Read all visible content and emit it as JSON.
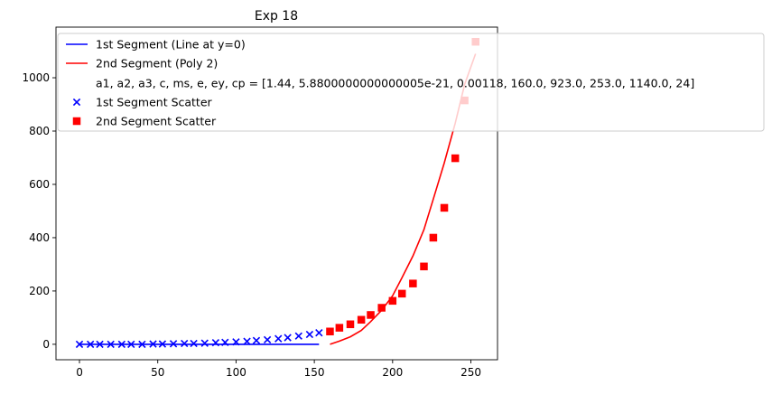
{
  "chart_data": {
    "type": "scatter",
    "title": "Exp 18",
    "xlabel": "",
    "ylabel": "",
    "xlim": [
      -15,
      267
    ],
    "ylim": [
      -58,
      1190
    ],
    "xticks": [
      0,
      50,
      100,
      150,
      200,
      250
    ],
    "yticks": [
      0,
      200,
      400,
      600,
      800,
      1000
    ],
    "grid": false,
    "legend_position": "upper-left",
    "legend": {
      "entries": [
        {
          "label": "1st Segment (Line at y=0)",
          "kind": "line",
          "color": "#0000ff"
        },
        {
          "label": "2nd Segment (Poly 2)",
          "kind": "line",
          "color": "#ff0000"
        },
        {
          "label": "a1, a2, a3, c, ms, e, ey, cp = [1.44, 5.8800000000000005e-21, 0.00118, 160.0, 923.0, 253.0, 1140.0, 24]",
          "kind": "none",
          "color": ""
        },
        {
          "label": "1st Segment Scatter",
          "kind": "x-marker",
          "color": "#0000ff"
        },
        {
          "label": "2nd Segment Scatter",
          "kind": "square-marker",
          "color": "#ff0000"
        }
      ]
    },
    "series": [
      {
        "name": "1st Segment (Line at y=0)",
        "style": "line",
        "color": "#0000ff",
        "x": [
          0,
          153
        ],
        "y": [
          0,
          0
        ]
      },
      {
        "name": "2nd Segment (Poly 2)",
        "style": "line",
        "color": "#ff0000",
        "x": [
          160,
          166,
          173,
          180,
          186,
          193,
          200,
          206,
          213,
          220,
          226,
          233,
          240,
          246,
          253
        ],
        "y": [
          0,
          12,
          28,
          52,
          85,
          128,
          182,
          250,
          332,
          430,
          545,
          680,
          830,
          975,
          1090
        ]
      },
      {
        "name": "1st Segment Scatter",
        "style": "x-marker",
        "color": "#0000ff",
        "x": [
          0,
          7,
          13,
          20,
          27,
          33,
          40,
          47,
          53,
          60,
          67,
          73,
          80,
          87,
          93,
          100,
          107,
          113,
          120,
          127,
          133,
          140,
          147,
          153
        ],
        "y": [
          0,
          0,
          0,
          0,
          0,
          0,
          0,
          1,
          1,
          2,
          3,
          3,
          4,
          6,
          7,
          9,
          11,
          14,
          17,
          21,
          25,
          31,
          37,
          43
        ]
      },
      {
        "name": "2nd Segment Scatter",
        "style": "square-marker",
        "color": "#ff0000",
        "x": [
          160,
          166,
          173,
          180,
          186,
          193,
          200,
          206,
          213,
          220,
          226,
          233,
          240,
          246,
          253
        ],
        "y": [
          48,
          62,
          75,
          92,
          110,
          137,
          163,
          190,
          228,
          292,
          400,
          512,
          698,
          915,
          1135
        ]
      }
    ]
  }
}
